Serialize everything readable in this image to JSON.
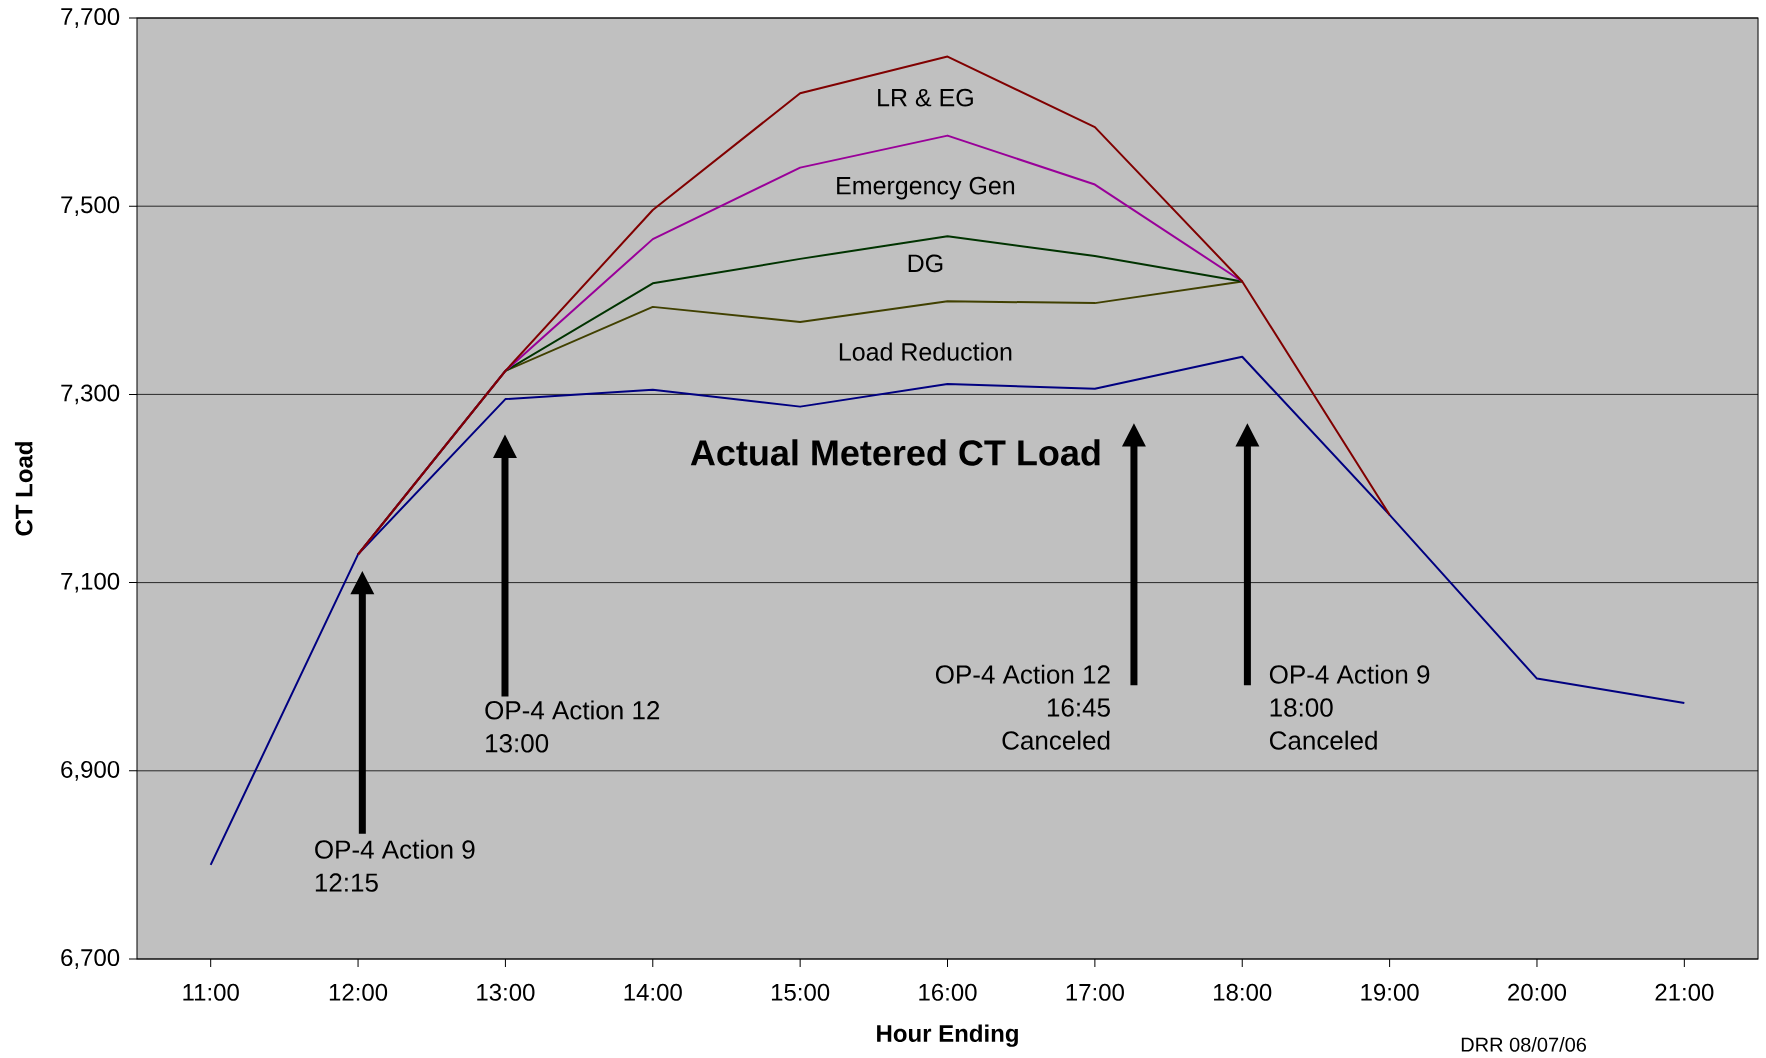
{
  "chart_data": {
    "type": "line",
    "xlabel": "Hour Ending",
    "ylabel": "CT Load",
    "categories": [
      "11:00",
      "12:00",
      "13:00",
      "14:00",
      "15:00",
      "16:00",
      "17:00",
      "18:00",
      "19:00",
      "20:00",
      "21:00"
    ],
    "series": [
      {
        "name": "Actual Metered CT Load",
        "color": "#000080",
        "values": [
          6800,
          7130,
          7295,
          7305,
          7287,
          7311,
          7306,
          7340,
          7172,
          6998,
          6972
        ]
      },
      {
        "name": "Load Reduction",
        "color": "#404000",
        "values": [
          null,
          7130,
          7325,
          7393,
          7377,
          7399,
          7397,
          7420,
          null,
          null,
          null
        ]
      },
      {
        "name": "DG",
        "color": "#003300",
        "values": [
          null,
          7130,
          7325,
          7418,
          7444,
          7468,
          7447,
          7420,
          null,
          null,
          null
        ]
      },
      {
        "name": "Emergency Gen",
        "color": "#990099",
        "values": [
          null,
          7130,
          7325,
          7465,
          7541,
          7575,
          7523,
          7420,
          null,
          null,
          null
        ]
      },
      {
        "name": "LR & EG",
        "color": "#800000",
        "values": [
          null,
          7130,
          7325,
          7496,
          7620,
          7659,
          7584,
          7420,
          7172,
          null,
          null
        ]
      }
    ],
    "ylim": [
      6700,
      7700
    ],
    "yticks": [
      {
        "value": 6700,
        "label": "6,700"
      },
      {
        "value": 6900,
        "label": "6,900"
      },
      {
        "value": 7100,
        "label": "7,100"
      },
      {
        "value": 7300,
        "label": "7,300"
      },
      {
        "value": 7500,
        "label": "7,500"
      },
      {
        "value": 7700,
        "label": "7,700"
      }
    ],
    "grid": "y",
    "legend": false,
    "marker": "none",
    "line_style": "solid",
    "annotations": [
      "OP-4 Action 9 12:15",
      "OP-4 Action 12 13:00",
      "OP-4 Action 12 16:45 Canceled",
      "OP-4 Action 9 18:00 Canceled",
      "DRR 08/07/06"
    ]
  }
}
